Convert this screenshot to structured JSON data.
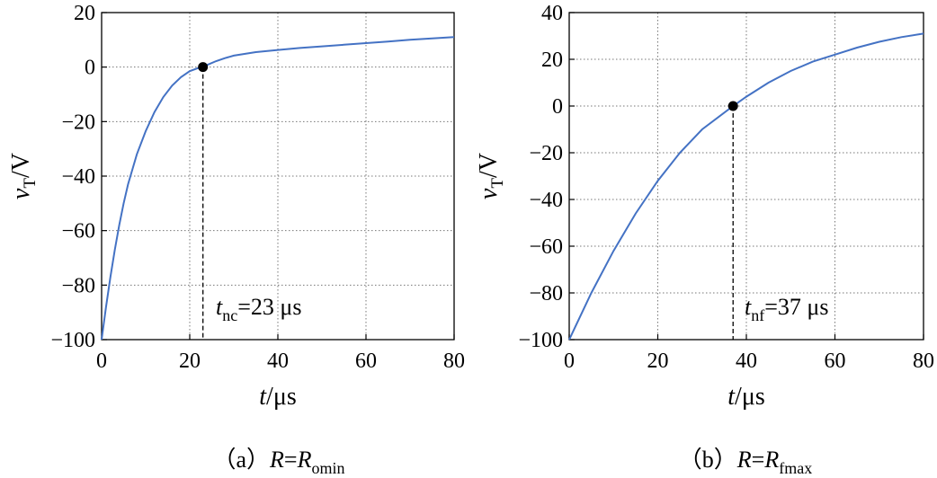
{
  "chart_data": [
    {
      "type": "line",
      "panel": "a",
      "caption": {
        "prefix": "（a）",
        "eq_lhs": "R",
        "eq_sign": "=",
        "eq_rhs": "R",
        "eq_rhs_sub": "omin"
      },
      "xlabel": {
        "var": "t",
        "unit": "/μs"
      },
      "ylabel": {
        "var": "v",
        "sub": "T",
        "unit": "/V"
      },
      "xlim": [
        0,
        80
      ],
      "ylim": [
        -100,
        20
      ],
      "xticks": [
        0,
        20,
        40,
        60,
        80
      ],
      "yticks": [
        -100,
        -80,
        -60,
        -40,
        -20,
        0,
        20
      ],
      "ytick_labels": [
        "−100",
        "−80",
        "−60",
        "−40",
        "−20",
        "0",
        "20"
      ],
      "grid": true,
      "series": [
        {
          "color": "#4472c4",
          "x": [
            0,
            1,
            2,
            3,
            4,
            5,
            6,
            8,
            10,
            12,
            14,
            16,
            18,
            20,
            22,
            23,
            24,
            26,
            28,
            30,
            35,
            40,
            45,
            50,
            55,
            60,
            65,
            70,
            75,
            80
          ],
          "y": [
            -100,
            -88,
            -77,
            -67,
            -58,
            -50,
            -43,
            -32,
            -23.5,
            -16.5,
            -11,
            -6.8,
            -3.7,
            -1.5,
            -0.3,
            0,
            0.8,
            2.2,
            3.3,
            4.2,
            5.5,
            6.3,
            7,
            7.6,
            8.2,
            8.8,
            9.4,
            10,
            10.5,
            11
          ]
        }
      ],
      "marker": {
        "x": 23,
        "y": 0
      },
      "annotation": {
        "var": "t",
        "sub": "nc",
        "text": "=23 μs"
      }
    },
    {
      "type": "line",
      "panel": "b",
      "caption": {
        "prefix": "（b）",
        "eq_lhs": "R",
        "eq_sign": "=",
        "eq_rhs": "R",
        "eq_rhs_sub": "fmax"
      },
      "xlabel": {
        "var": "t",
        "unit": "/μs"
      },
      "ylabel": {
        "var": "v",
        "sub": "T",
        "unit": "/V"
      },
      "xlim": [
        0,
        80
      ],
      "ylim": [
        -100,
        40
      ],
      "xticks": [
        0,
        20,
        40,
        60,
        80
      ],
      "yticks": [
        -100,
        -80,
        -60,
        -40,
        -20,
        0,
        20,
        40
      ],
      "ytick_labels": [
        "−100",
        "−80",
        "−60",
        "−40",
        "−20",
        "0",
        "20",
        "40"
      ],
      "grid": true,
      "series": [
        {
          "color": "#4472c4",
          "x": [
            0,
            5,
            10,
            15,
            20,
            25,
            30,
            37,
            40,
            45,
            50,
            55,
            60,
            65,
            70,
            75,
            80
          ],
          "y": [
            -100,
            -80,
            -62,
            -46,
            -32,
            -20,
            -10,
            0,
            4,
            10,
            15,
            19,
            22,
            25,
            27.5,
            29.5,
            31
          ]
        }
      ],
      "marker": {
        "x": 37,
        "y": 0
      },
      "annotation": {
        "var": "t",
        "sub": "nf",
        "text": "=37 μs"
      }
    }
  ]
}
